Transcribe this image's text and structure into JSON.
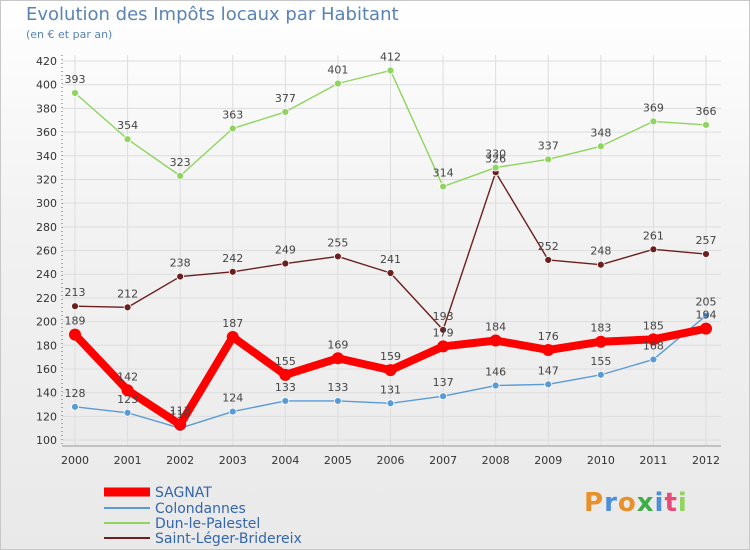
{
  "chart_data": {
    "type": "line",
    "title": "Evolution des Impôts locaux par Habitant",
    "subtitle": "(en € et par an)",
    "x": [
      "2000",
      "2001",
      "2002",
      "2003",
      "2004",
      "2005",
      "2006",
      "2007",
      "2008",
      "2009",
      "2010",
      "2011",
      "2012"
    ],
    "yticks": [
      "100",
      "120",
      "140",
      "160",
      "180",
      "200",
      "220",
      "240",
      "260",
      "280",
      "300",
      "320",
      "340",
      "360",
      "380",
      "400",
      "420"
    ],
    "ylim": [
      100,
      420
    ],
    "grid": true,
    "legend": "bottom-left",
    "series": [
      {
        "name": "SAGNAT",
        "color": "#ff0000",
        "values": [
          189,
          142,
          113,
          187,
          155,
          169,
          159,
          179,
          184,
          176,
          183,
          185,
          194
        ],
        "labels": [
          "189",
          "142",
          "113",
          "187",
          "155",
          "169",
          "159",
          "179",
          "184",
          "176",
          "183",
          "185",
          "194"
        ]
      },
      {
        "name": "Colondannes",
        "color": "#5b9bd5",
        "values": [
          128,
          123,
          110,
          124,
          133,
          133,
          131,
          137,
          146,
          147,
          155,
          168,
          205
        ],
        "labels": [
          "128",
          "123",
          "110",
          "124",
          "133",
          "133",
          "131",
          "137",
          "146",
          "147",
          "155",
          "168",
          "205"
        ]
      },
      {
        "name": "Dun-le-Palestel",
        "color": "#8fd45f",
        "values": [
          393,
          354,
          323,
          363,
          377,
          401,
          412,
          314,
          330,
          337,
          348,
          369,
          366
        ],
        "labels": [
          "393",
          "354",
          "323",
          "363",
          "377",
          "401",
          "412",
          "314",
          "330",
          "337",
          "348",
          "369",
          "366"
        ]
      },
      {
        "name": "Saint-Léger-Bridereix",
        "color": "#6b1f1f",
        "values": [
          213,
          212,
          238,
          242,
          249,
          255,
          241,
          193,
          326,
          252,
          248,
          261,
          257
        ],
        "labels": [
          "213",
          "212",
          "238",
          "242",
          "249",
          "255",
          "241",
          "193",
          "326",
          "252",
          "248",
          "261",
          "257"
        ]
      }
    ]
  },
  "logo": {
    "text": "Proxiti",
    "colors": [
      "#e8902a",
      "#4a8fd8",
      "#e8902a",
      "#3fae49",
      "#4a8fd8",
      "#e84a7a",
      "#8fd45f"
    ]
  }
}
